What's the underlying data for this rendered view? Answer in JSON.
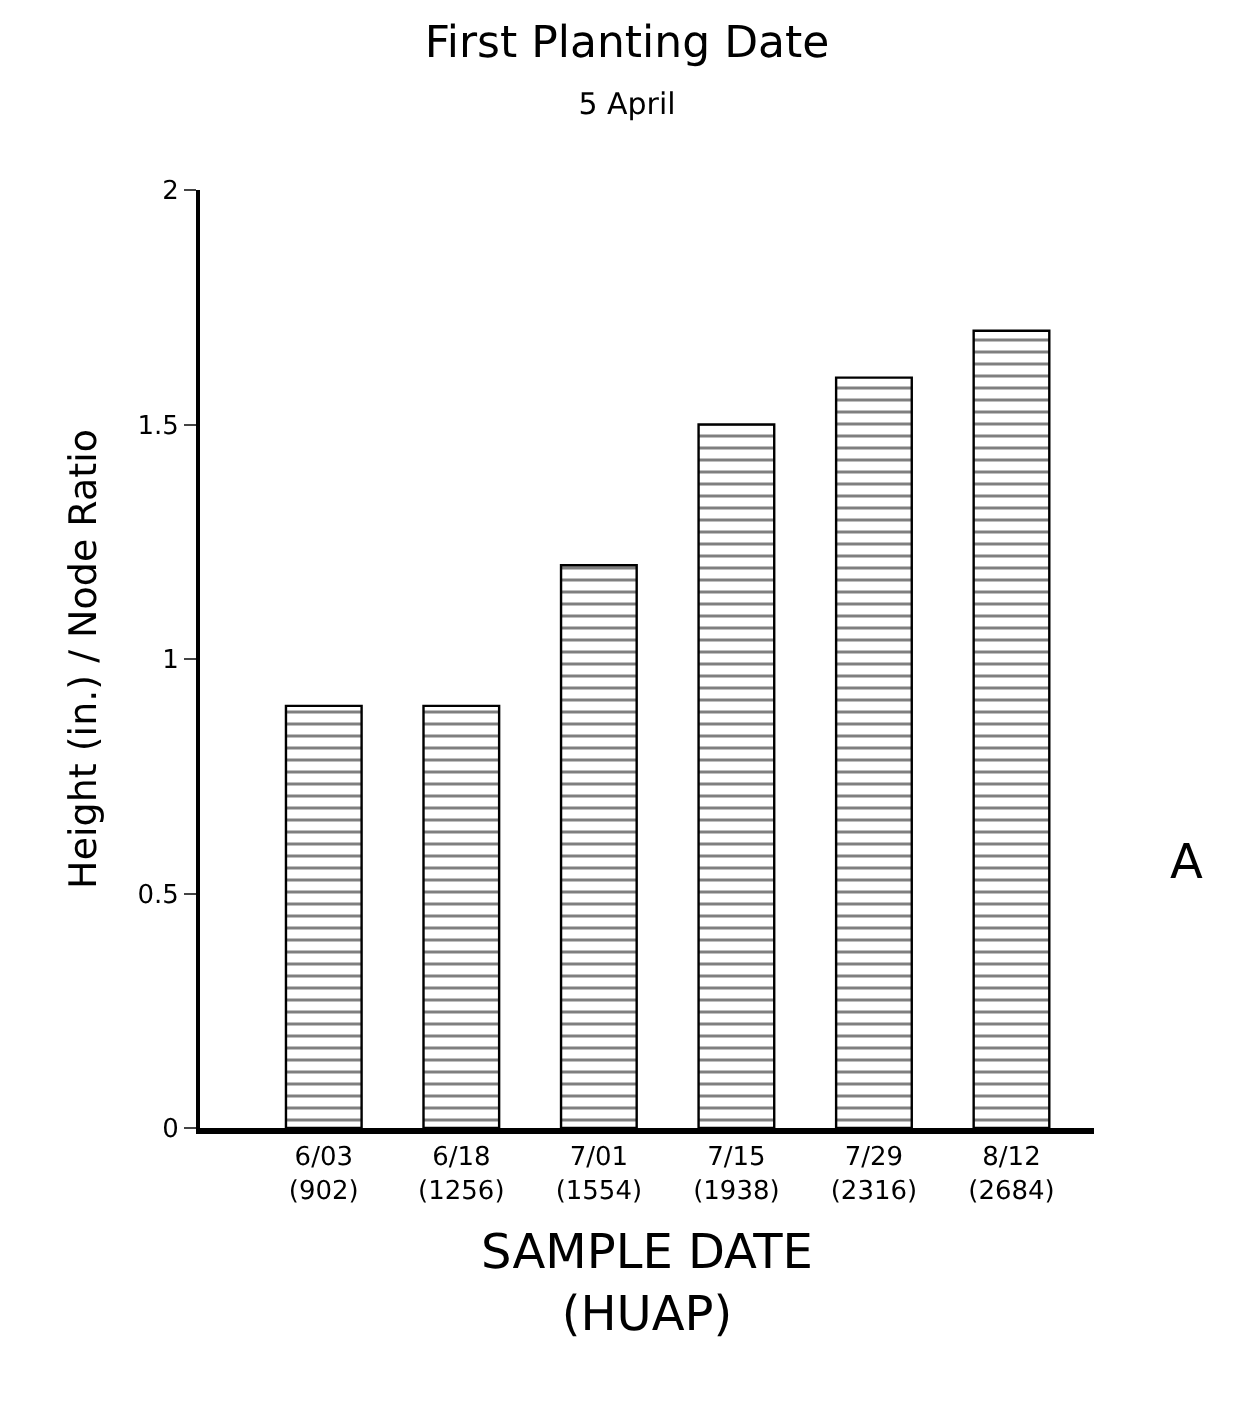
{
  "chart_data": {
    "type": "bar",
    "title": "First Planting Date",
    "subtitle": "5 April",
    "xlabel": "SAMPLE DATE\n(HUAP)",
    "ylabel": "Height (in.) / Node Ratio",
    "categories": [
      "6/03\n(902)",
      "6/18\n(1256)",
      "7/01\n(1554)",
      "7/15\n(1938)",
      "7/29\n(2316)",
      "8/12\n(2684)"
    ],
    "series": [
      {
        "color": "#000000",
        "values": [
          0.9,
          0.9,
          1.2,
          1.5,
          1.6,
          1.7
        ]
      }
    ],
    "ylim": [
      0,
      2
    ],
    "yticks": [
      0,
      0.5,
      1,
      1.5,
      2
    ],
    "annotations": [
      "A"
    ]
  }
}
